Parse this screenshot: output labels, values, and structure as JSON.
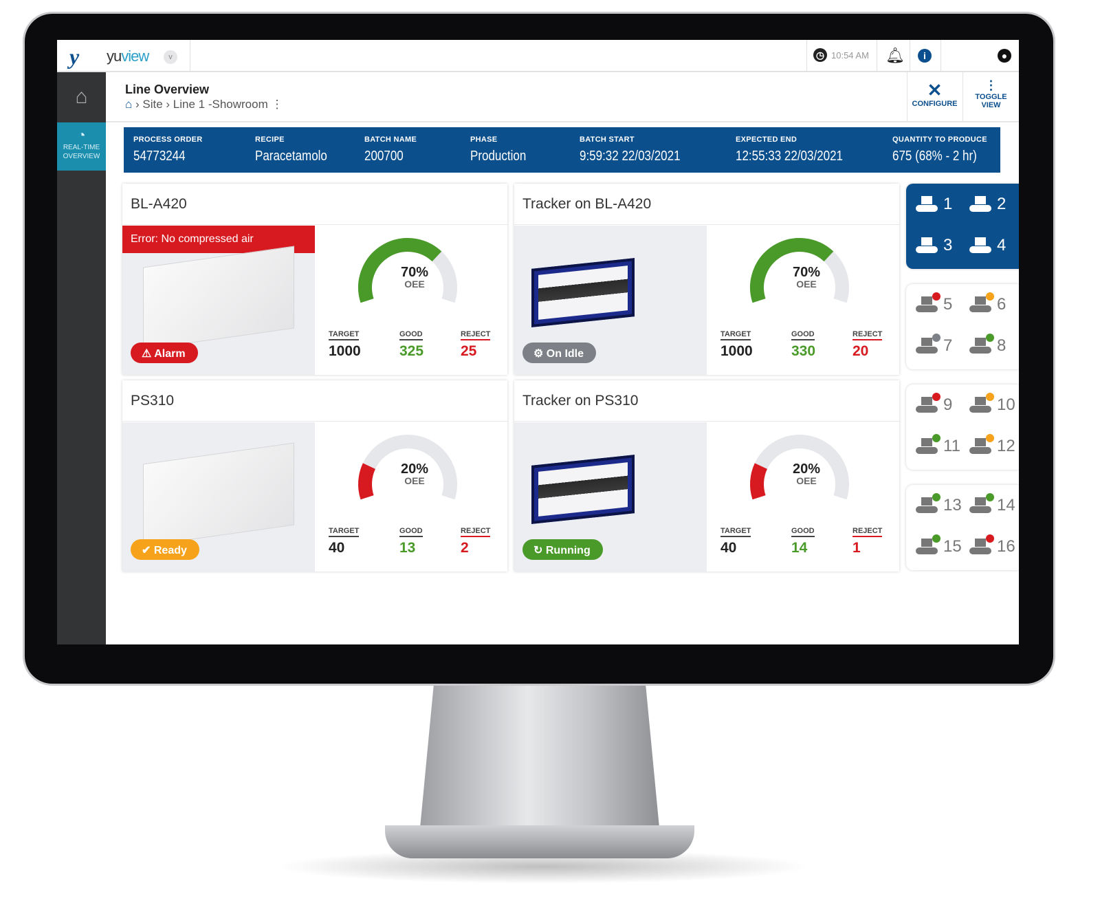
{
  "app": {
    "name_a": "yu",
    "name_b": "view",
    "logo": "yv-logo",
    "time": "10:54 AM"
  },
  "sidebar": {
    "home_icon": "home-icon",
    "rt_label_1": "REAL-TIME",
    "rt_label_2": "OVERVIEW"
  },
  "header": {
    "title": "Line Overview",
    "breadcrumb": [
      "Site",
      "Line 1 -Showroom"
    ],
    "configure": "CONFIGURE",
    "toggle_1": "TOGGLE",
    "toggle_2": "VIEW"
  },
  "batch": [
    {
      "label": "PROCESS ORDER",
      "value": "54773244"
    },
    {
      "label": "RECIPE",
      "value": "Paracetamolo"
    },
    {
      "label": "BATCH NAME",
      "value": "200700"
    },
    {
      "label": "PHASE",
      "value": "Production"
    },
    {
      "label": "BATCH START",
      "value": "9:59:32  22/03/2021"
    },
    {
      "label": "EXPECTED END",
      "value": "12:55:33  22/03/2021"
    },
    {
      "label": "QUANTITY TO PRODUCE",
      "value": "675 (68% - 2 hr)"
    }
  ],
  "stat_labels": {
    "target": "TARGET",
    "good": "GOOD",
    "reject": "REJECT",
    "oee": "OEE"
  },
  "cards": [
    {
      "title": "BL-A420",
      "error_prefix": "Error:",
      "error": " No compressed air",
      "status": "Alarm",
      "status_color": "#d71920",
      "oee": 70,
      "oee_text": "70%",
      "target": "1000",
      "good": "325",
      "reject": "25"
    },
    {
      "title": "Tracker on BL-A420",
      "status": "On Idle",
      "status_color": "#7d8187",
      "oee": 70,
      "oee_text": "70%",
      "target": "1000",
      "good": "330",
      "reject": "20"
    },
    {
      "title": "PS310",
      "status": "Ready",
      "status_color": "#f6a21a",
      "oee": 20,
      "oee_text": "20%",
      "target": "40",
      "good": "13",
      "reject": "2"
    },
    {
      "title": "Tracker on PS310",
      "status": "Running",
      "status_color": "#4a9a2a",
      "oee": 20,
      "oee_text": "20%",
      "target": "40",
      "good": "14",
      "reject": "1"
    }
  ],
  "colors": {
    "good": "#4a9a2a",
    "reject": "#d71920",
    "warn": "#f6a21a",
    "idle": "#7d8187",
    "brand": "#0b4f8c"
  },
  "lines": [
    {
      "n": "1",
      "status": null
    },
    {
      "n": "2",
      "status": null
    },
    {
      "n": "3",
      "status": null
    },
    {
      "n": "4",
      "status": null
    },
    {
      "n": "5",
      "status": "#d71920"
    },
    {
      "n": "6",
      "status": "#f6a21a"
    },
    {
      "n": "7",
      "status": "#7d8187"
    },
    {
      "n": "8",
      "status": "#4a9a2a"
    },
    {
      "n": "9",
      "status": "#d71920"
    },
    {
      "n": "10",
      "status": "#f6a21a"
    },
    {
      "n": "11",
      "status": "#4a9a2a"
    },
    {
      "n": "12",
      "status": "#f6a21a"
    },
    {
      "n": "13",
      "status": "#4a9a2a"
    },
    {
      "n": "14",
      "status": "#4a9a2a"
    },
    {
      "n": "15",
      "status": "#4a9a2a"
    },
    {
      "n": "16",
      "status": "#d71920"
    }
  ]
}
